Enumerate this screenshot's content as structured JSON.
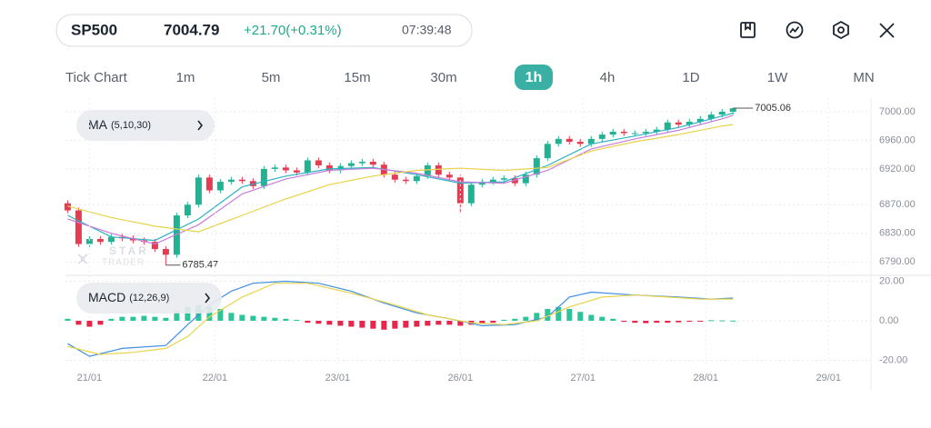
{
  "header": {
    "symbol": "SP500",
    "price": "7004.79",
    "change": "+21.70(+0.31%)",
    "time": "07:39:48"
  },
  "timeframes": {
    "items": [
      "Tick Chart",
      "1m",
      "5m",
      "15m",
      "30m",
      "1h",
      "4h",
      "1D",
      "1W",
      "MN"
    ],
    "active": 5
  },
  "watermark": {
    "line1": "STAR",
    "line2": "TRADER"
  },
  "chart_data": [
    {
      "type": "candlestick",
      "label": "MA",
      "params": "(5,10,30)",
      "categories": [
        null,
        null,
        null,
        null,
        null,
        null,
        null,
        null,
        null,
        null,
        null,
        null,
        null,
        null,
        null,
        null,
        null,
        null,
        null,
        null,
        null,
        null,
        null,
        null,
        null,
        null,
        null,
        null,
        null,
        null,
        null,
        null,
        null,
        null,
        null,
        null,
        null,
        null,
        null,
        null,
        null,
        null,
        null,
        null,
        null,
        null,
        null,
        null,
        null,
        null,
        null,
        null,
        null,
        null,
        null,
        null,
        null,
        null,
        null,
        null,
        null,
        null
      ],
      "xlim": [
        -0.2,
        73.4
      ],
      "ylim": [
        6775,
        7019
      ],
      "yticks": [
        {
          "value": 7000,
          "label": "7000.00"
        },
        {
          "value": 6960,
          "label": "6960.00"
        },
        {
          "value": 6920,
          "label": "6920.00"
        },
        {
          "value": 6870,
          "label": "6870.00"
        },
        {
          "value": 6830,
          "label": "6830.00"
        },
        {
          "value": 6790,
          "label": "6790.00"
        }
      ],
      "grid": true,
      "up_color": "#1fb394",
      "down_color": "#e73b52",
      "open": [
        6872,
        6862,
        6815,
        6822,
        6818,
        6825,
        6823,
        6820,
        6818,
        6808,
        6800,
        6855,
        6870,
        6908,
        6890,
        6902,
        6905,
        6903,
        6896,
        6920,
        6922,
        6918,
        6915,
        6932,
        6925,
        6918,
        6924,
        6928,
        6930,
        6926,
        6912,
        6905,
        6903,
        6910,
        6925,
        6912,
        6908,
        6872,
        6898,
        6902,
        6905,
        6907,
        6900,
        6912,
        6935,
        6955,
        6962,
        6958,
        6955,
        6962,
        6968,
        6972,
        6970,
        6970,
        6972,
        6975,
        6985,
        6982,
        6986,
        6990,
        6996,
        7000
      ],
      "high": [
        6876,
        6866,
        6826,
        6826,
        6829,
        6829,
        6827,
        6824,
        6822,
        6812,
        6859,
        6874,
        6912,
        6912,
        6906,
        6909,
        6909,
        6907,
        6924,
        6926,
        6926,
        6922,
        6936,
        6936,
        6929,
        6928,
        6932,
        6934,
        6934,
        6930,
        6916,
        6909,
        6914,
        6929,
        6929,
        6916,
        6912,
        6902,
        6906,
        6909,
        6911,
        6911,
        6916,
        6939,
        6959,
        6966,
        6966,
        6962,
        6966,
        6972,
        6976,
        6976,
        6974,
        6976,
        6979,
        6989,
        6989,
        6990,
        6994,
        7000,
        7004,
        7005.06
      ],
      "low": [
        6858,
        6811,
        6811,
        6814,
        6814,
        6819,
        6816,
        6814,
        6804,
        6785.47,
        6796,
        6851,
        6866,
        6886,
        6886,
        6898,
        6899,
        6892,
        6892,
        6916,
        6914,
        6911,
        6911,
        6921,
        6914,
        6914,
        6920,
        6924,
        6922,
        6908,
        6901,
        6899,
        6899,
        6906,
        6908,
        6904,
        6858,
        6868,
        6894,
        6898,
        6901,
        6896,
        6896,
        6908,
        6931,
        6951,
        6954,
        6951,
        6951,
        6958,
        6964,
        6966,
        6966,
        6966,
        6968,
        6971,
        6978,
        6978,
        6982,
        6986,
        6992,
        6996
      ],
      "close": [
        6862,
        6815,
        6822,
        6818,
        6825,
        6823,
        6820,
        6818,
        6808,
        6800,
        6855,
        6870,
        6908,
        6890,
        6902,
        6905,
        6903,
        6896,
        6920,
        6922,
        6918,
        6915,
        6932,
        6925,
        6918,
        6924,
        6928,
        6930,
        6926,
        6912,
        6905,
        6903,
        6910,
        6925,
        6912,
        6908,
        6872,
        6898,
        6902,
        6905,
        6907,
        6900,
        6912,
        6935,
        6955,
        6962,
        6958,
        6955,
        6962,
        6968,
        6972,
        6970,
        6970,
        6972,
        6975,
        6985,
        6982,
        6986,
        6990,
        6996,
        7000,
        7004.79
      ],
      "series": [
        {
          "color": "#2ab3c0",
          "x": [
            0,
            4,
            8,
            12,
            16,
            20,
            24,
            28,
            32,
            36,
            40,
            44,
            48,
            52,
            56,
            60,
            61
          ],
          "values": [
            6855,
            6825,
            6820,
            6850,
            6895,
            6910,
            6920,
            6922,
            6912,
            6900,
            6902,
            6925,
            6955,
            6966,
            6978,
            6994,
            6998
          ]
        },
        {
          "color": "#c77dd9",
          "x": [
            0,
            4,
            8,
            12,
            16,
            20,
            24,
            28,
            32,
            36,
            40,
            44,
            48,
            52,
            56,
            60,
            61
          ],
          "values": [
            6850,
            6830,
            6815,
            6842,
            6885,
            6906,
            6918,
            6921,
            6914,
            6902,
            6900,
            6918,
            6948,
            6962,
            6974,
            6990,
            6995
          ]
        },
        {
          "color": "#e8d34a",
          "x": [
            0,
            4,
            8,
            12,
            16,
            20,
            24,
            28,
            32,
            36,
            40,
            44,
            48,
            52,
            56,
            60,
            61
          ],
          "values": [
            6868,
            6852,
            6840,
            6832,
            6855,
            6878,
            6898,
            6910,
            6918,
            6921,
            6918,
            6922,
            6945,
            6958,
            6968,
            6980,
            6982
          ]
        }
      ]
    },
    {
      "type": "macd",
      "label": "MACD",
      "params": "(12,26,9)",
      "xlim": [
        -0.2,
        73.4
      ],
      "ylim": [
        -23,
        23
      ],
      "yticks": [
        {
          "value": 20,
          "label": "20.00"
        },
        {
          "value": 0,
          "label": "0.00"
        },
        {
          "value": -20,
          "label": "-20.00"
        }
      ],
      "xticks": [
        {
          "value": 2,
          "label": "21/01"
        },
        {
          "value": 13.5,
          "label": "22/01"
        },
        {
          "value": 24.75,
          "label": "23/01"
        },
        {
          "value": 36,
          "label": "26/01"
        },
        {
          "value": 47.25,
          "label": "27/01"
        },
        {
          "value": 58.5,
          "label": "28/01"
        },
        {
          "value": 69.75,
          "label": "29/01"
        }
      ],
      "grid": true,
      "up_color": "#2fc39a",
      "down_color": "#e8264b",
      "values": [
        1,
        -2,
        -3,
        -2,
        1,
        2,
        2,
        2.5,
        2,
        1.5,
        5,
        7,
        8,
        7,
        6,
        4,
        3,
        2.5,
        2,
        1.5,
        1,
        0.5,
        -1,
        -1.5,
        -2,
        -2.5,
        -3,
        -3.5,
        -4,
        -4.5,
        -4,
        -3.5,
        -3,
        -2.5,
        -2,
        -2,
        -2.5,
        -2,
        -1.5,
        -1,
        0.5,
        1,
        2,
        4,
        6,
        7,
        6,
        4.5,
        3,
        2,
        1,
        -0.5,
        -1,
        -1.2,
        -1,
        -1,
        -0.8,
        -0.5,
        -0.3,
        0.3,
        0.2,
        0.1
      ],
      "series": [
        {
          "color": "#3d8fe0",
          "x": [
            0,
            2,
            5,
            9,
            11,
            13,
            15,
            17,
            20,
            23,
            26,
            29,
            32,
            35,
            38,
            41,
            44,
            46,
            48,
            52,
            56,
            59,
            61
          ],
          "values": [
            -11.6,
            -18,
            -14,
            -12.5,
            -2,
            8,
            15,
            19,
            20,
            19,
            15,
            9,
            4,
            1,
            -2.5,
            -2,
            2,
            12,
            14.5,
            13,
            12,
            11,
            11.5
          ]
        },
        {
          "color": "#e8d34a",
          "x": [
            0,
            3,
            6,
            9,
            11,
            13,
            16,
            19,
            22,
            26,
            30,
            33,
            37,
            40,
            43,
            46,
            49,
            52,
            55,
            58,
            61
          ],
          "values": [
            -13,
            -17,
            -16,
            -14,
            -8,
            2,
            12,
            19,
            19,
            14,
            8,
            3,
            -1,
            -2,
            0,
            7,
            12,
            13,
            12,
            11,
            11
          ]
        }
      ]
    }
  ]
}
